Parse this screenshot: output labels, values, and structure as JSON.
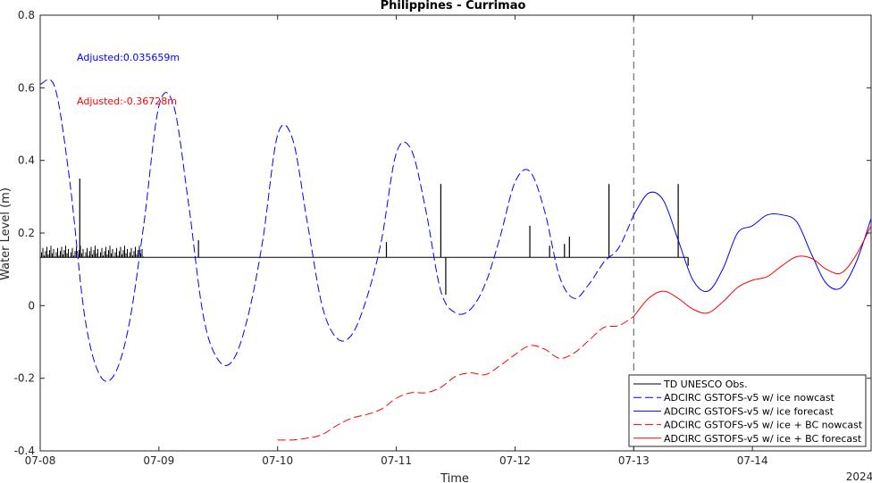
{
  "chart_data": {
    "type": "line",
    "title": "Philippines - Currimao",
    "xlabel": "Time",
    "ylabel": "Water Level (m)",
    "year_label": "2024",
    "xlim": [
      "07-08 00:00",
      "07-15 00:00"
    ],
    "ylim": [
      -0.4,
      0.8
    ],
    "x_ticks": [
      "07-08",
      "07-09",
      "07-10",
      "07-11",
      "07-12",
      "07-13",
      "07-14"
    ],
    "y_ticks": [
      "-0.4",
      "-0.2",
      "0",
      "0.2",
      "0.4",
      "0.6",
      "0.8"
    ],
    "nowcast_forecast_boundary": "07-13 00:00",
    "annotations": [
      {
        "text": "Adjusted:0.035659m",
        "color": "#0000ff"
      },
      {
        "text": "Adjusted:-0.36728m",
        "color": "#ff0000"
      }
    ],
    "legend_position": "bottom-right",
    "series": [
      {
        "name": "TD UNESCO Obs.",
        "color": "#000000",
        "style": "solid",
        "baseline": 0.133,
        "noise_segment": {
          "x": [
            "07-08 00:00",
            "07-08 21:00"
          ],
          "range": [
            0.135,
            0.165
          ]
        },
        "spikes": [
          {
            "x": "07-08 08:00",
            "y": 0.35
          },
          {
            "x": "07-09 08:00",
            "y": 0.18
          },
          {
            "x": "07-10 22:00",
            "y": 0.175
          },
          {
            "x": "07-11 09:00",
            "y": 0.335
          },
          {
            "x": "07-11 10:00",
            "y": 0.03
          },
          {
            "x": "07-12 03:00",
            "y": 0.22
          },
          {
            "x": "07-12 07:00",
            "y": 0.165
          },
          {
            "x": "07-12 10:00",
            "y": 0.17
          },
          {
            "x": "07-12 11:00",
            "y": 0.19
          },
          {
            "x": "07-12 19:00",
            "y": 0.335
          },
          {
            "x": "07-13 09:00",
            "y": 0.335
          },
          {
            "x": "07-13 11:00",
            "y": 0.11
          }
        ],
        "x_end": "07-13 11:00"
      },
      {
        "name": "ADCIRC GSTOFS-v5 w/ ice nowcast",
        "color": "#0000ff",
        "style": "dashed",
        "x": [
          "07-08 00:00",
          "07-08 03:00",
          "07-08 06:00",
          "07-08 09:00",
          "07-08 12:00",
          "07-08 15:00",
          "07-08 18:00",
          "07-08 21:00",
          "07-09 00:00",
          "07-09 03:00",
          "07-09 06:00",
          "07-09 09:00",
          "07-09 12:00",
          "07-09 15:00",
          "07-09 18:00",
          "07-09 21:00",
          "07-10 00:00",
          "07-10 03:00",
          "07-10 06:00",
          "07-10 09:00",
          "07-10 12:00",
          "07-10 15:00",
          "07-10 18:00",
          "07-10 21:00",
          "07-11 00:00",
          "07-11 03:00",
          "07-11 06:00",
          "07-11 09:00",
          "07-11 12:00",
          "07-11 15:00",
          "07-11 18:00",
          "07-11 21:00",
          "07-12 00:00",
          "07-12 03:00",
          "07-12 06:00",
          "07-12 09:00",
          "07-12 12:00",
          "07-12 15:00",
          "07-12 18:00",
          "07-12 21:00",
          "07-13 00:00"
        ],
        "values": [
          0.61,
          0.6,
          0.34,
          -0.03,
          -0.19,
          -0.19,
          -0.05,
          0.23,
          0.55,
          0.55,
          0.28,
          -0.03,
          -0.15,
          -0.15,
          -0.03,
          0.18,
          0.47,
          0.46,
          0.23,
          0.0,
          -0.09,
          -0.08,
          0.02,
          0.18,
          0.42,
          0.43,
          0.26,
          0.04,
          -0.02,
          -0.01,
          0.06,
          0.19,
          0.34,
          0.37,
          0.26,
          0.08,
          0.02,
          0.06,
          0.12,
          0.16,
          0.25
        ]
      },
      {
        "name": "ADCIRC GSTOFS-v5 w/ ice forecast",
        "color": "#0000ff",
        "style": "solid",
        "x": [
          "07-13 00:00",
          "07-13 03:00",
          "07-13 06:00",
          "07-13 09:00",
          "07-13 12:00",
          "07-13 15:00",
          "07-13 18:00",
          "07-13 21:00",
          "07-14 00:00",
          "07-14 03:00",
          "07-14 06:00",
          "07-14 09:00",
          "07-14 12:00",
          "07-14 15:00",
          "07-14 18:00",
          "07-14 21:00",
          "07-15 00:00"
        ],
        "values": [
          0.25,
          0.31,
          0.29,
          0.18,
          0.07,
          0.04,
          0.1,
          0.2,
          0.22,
          0.25,
          0.25,
          0.23,
          0.14,
          0.06,
          0.05,
          0.12,
          0.24
        ]
      },
      {
        "name": "ADCIRC GSTOFS-v5 w/ ice + BC nowcast",
        "color": "#ff0000",
        "style": "dashed",
        "x": [
          "07-10 00:00",
          "07-10 03:00",
          "07-10 06:00",
          "07-10 09:00",
          "07-10 12:00",
          "07-10 15:00",
          "07-10 18:00",
          "07-10 21:00",
          "07-11 00:00",
          "07-11 03:00",
          "07-11 06:00",
          "07-11 09:00",
          "07-11 12:00",
          "07-11 15:00",
          "07-11 18:00",
          "07-11 21:00",
          "07-12 00:00",
          "07-12 03:00",
          "07-12 06:00",
          "07-12 09:00",
          "07-12 12:00",
          "07-12 15:00",
          "07-12 18:00",
          "07-12 21:00",
          "07-13 00:00"
        ],
        "values": [
          -0.37,
          -0.37,
          -0.365,
          -0.355,
          -0.33,
          -0.31,
          -0.3,
          -0.285,
          -0.255,
          -0.24,
          -0.24,
          -0.225,
          -0.195,
          -0.185,
          -0.19,
          -0.165,
          -0.135,
          -0.11,
          -0.12,
          -0.145,
          -0.13,
          -0.095,
          -0.06,
          -0.055,
          -0.03
        ]
      },
      {
        "name": "ADCIRC GSTOFS-v5 w/ ice + BC forecast",
        "color": "#ff0000",
        "style": "solid",
        "x": [
          "07-13 00:00",
          "07-13 03:00",
          "07-13 06:00",
          "07-13 09:00",
          "07-13 12:00",
          "07-13 15:00",
          "07-13 18:00",
          "07-13 21:00",
          "07-14 00:00",
          "07-14 03:00",
          "07-14 06:00",
          "07-14 09:00",
          "07-14 12:00",
          "07-14 15:00",
          "07-14 18:00",
          "07-14 21:00",
          "07-15 00:00"
        ],
        "values": [
          -0.03,
          0.02,
          0.04,
          0.02,
          -0.01,
          -0.02,
          0.01,
          0.05,
          0.07,
          0.08,
          0.11,
          0.135,
          0.13,
          0.1,
          0.09,
          0.14,
          0.22
        ]
      }
    ]
  }
}
